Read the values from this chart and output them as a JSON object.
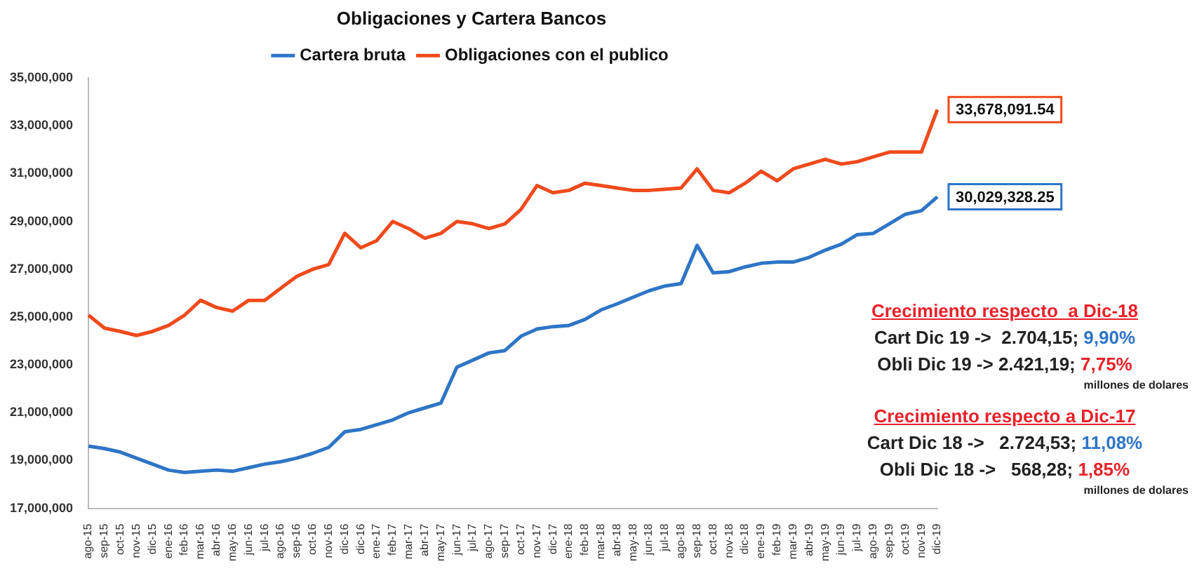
{
  "chart_data": {
    "type": "line",
    "title": "Obligaciones y Cartera Bancos",
    "categories": [
      "ago-15",
      "sep-15",
      "oct-15",
      "nov-15",
      "dic-15",
      "ene-16",
      "feb-16",
      "mar-16",
      "abr-16",
      "may-16",
      "jun-16",
      "jul-16",
      "ago-16",
      "sep-16",
      "oct-16",
      "nov-16",
      "dic-16",
      "dic-16",
      "ene-17",
      "feb-17",
      "mar-17",
      "abr-17",
      "may-17",
      "jun-17",
      "jul-17",
      "ago-17",
      "sep-17",
      "oct-17",
      "nov-17",
      "dic-17",
      "ene-18",
      "feb-18",
      "mar-18",
      "abr-18",
      "may-18",
      "jun-18",
      "jul-18",
      "ago-18",
      "sep-18",
      "oct-18",
      "nov-18",
      "dic-18",
      "ene-19",
      "feb-19",
      "mar-19",
      "abr-19",
      "may-19",
      "jun-19",
      "jul-19",
      "ago-19",
      "sep-19",
      "oct-19",
      "nov-19",
      "dic-19"
    ],
    "series": [
      {
        "name": "Cartera bruta",
        "color": "#2e75c6",
        "values": [
          19600000,
          19500000,
          19350000,
          19100000,
          18850000,
          18600000,
          18500000,
          18550000,
          18600000,
          18550000,
          18700000,
          18850000,
          18950000,
          19100000,
          19300000,
          19550000,
          20200000,
          20300000,
          20500000,
          20700000,
          21000000,
          21200000,
          21400000,
          22900000,
          23200000,
          23500000,
          23600000,
          24200000,
          24500000,
          24600000,
          24650000,
          24900000,
          25300000,
          25550000,
          25830000,
          26100000,
          26300000,
          26400000,
          28000000,
          26850000,
          26900000,
          27100000,
          27250000,
          27300000,
          27300000,
          27500000,
          27800000,
          28050000,
          28450000,
          28500000,
          28900000,
          29300000,
          29450000,
          30029328.25
        ],
        "value_labels": [
          null,
          null,
          null,
          null,
          null,
          null,
          null,
          null,
          null,
          null,
          null,
          null,
          null,
          null,
          null,
          null,
          null,
          null,
          null,
          null,
          null,
          null,
          null,
          null,
          null,
          null,
          null,
          null,
          null,
          null,
          null,
          null,
          null,
          null,
          null,
          null,
          null,
          null,
          null,
          null,
          null,
          null,
          null,
          null,
          null,
          null,
          null,
          null,
          null,
          null,
          null,
          null,
          null,
          "30,029,328.25"
        ]
      },
      {
        "name": "Obligaciones con el publico",
        "color": "#f04a1c",
        "values": [
          25080000,
          24540000,
          24400000,
          24230000,
          24400000,
          24650000,
          25080000,
          25700000,
          25400000,
          25250000,
          25700000,
          25700000,
          26200000,
          26700000,
          27000000,
          27200000,
          28500000,
          27900000,
          28200000,
          29000000,
          28700000,
          28300000,
          28500000,
          29000000,
          28900000,
          28700000,
          28900000,
          29500000,
          30500000,
          30200000,
          30300000,
          30600000,
          30500000,
          30400000,
          30300000,
          30300000,
          30350000,
          30400000,
          31200000,
          30300000,
          30200000,
          30600000,
          31100000,
          30700000,
          31200000,
          31400000,
          31600000,
          31400000,
          31500000,
          31700000,
          31900000,
          31900000,
          31900000,
          33678091.54
        ],
        "value_labels": [
          null,
          null,
          null,
          null,
          null,
          null,
          null,
          null,
          null,
          null,
          null,
          null,
          null,
          null,
          null,
          null,
          null,
          null,
          null,
          null,
          null,
          null,
          null,
          null,
          null,
          null,
          null,
          null,
          null,
          null,
          null,
          null,
          null,
          null,
          null,
          null,
          null,
          null,
          null,
          null,
          null,
          null,
          null,
          null,
          null,
          null,
          null,
          null,
          null,
          null,
          null,
          null,
          null,
          "33,678,091.54"
        ]
      }
    ],
    "ylim": [
      17000000,
      35000000
    ],
    "yticks": [
      {
        "value": 17000000,
        "label": "17,000,000"
      },
      {
        "value": 19000000,
        "label": "19,000,000"
      },
      {
        "value": 21000000,
        "label": "21,000,000"
      },
      {
        "value": 23000000,
        "label": "23,000,000"
      },
      {
        "value": 25000000,
        "label": "25,000,000"
      },
      {
        "value": 27000000,
        "label": "27,000,000"
      },
      {
        "value": 29000000,
        "label": "29,000,000"
      },
      {
        "value": 31000000,
        "label": "31,000,000"
      },
      {
        "value": 33000000,
        "label": "33,000,000"
      },
      {
        "value": 35000000,
        "label": "35,000,000"
      }
    ],
    "grid": false,
    "legend": "top",
    "marker": "none",
    "line_style": "solid",
    "annotations": [
      "Crecimiento respecto  a Dic-18",
      "Cart Dic 19 ->  2.704,15; 9,90%",
      "Obli Dic 19 -> 2.421,19; 7,75%",
      "millones de dolares",
      "Crecimiento respecto a Dic-17",
      "Cart Dic 18 ->   2.724,53; 11,08%",
      "Obli Dic 18 ->   568,28; 1,85%",
      "millones de dolares"
    ]
  }
}
